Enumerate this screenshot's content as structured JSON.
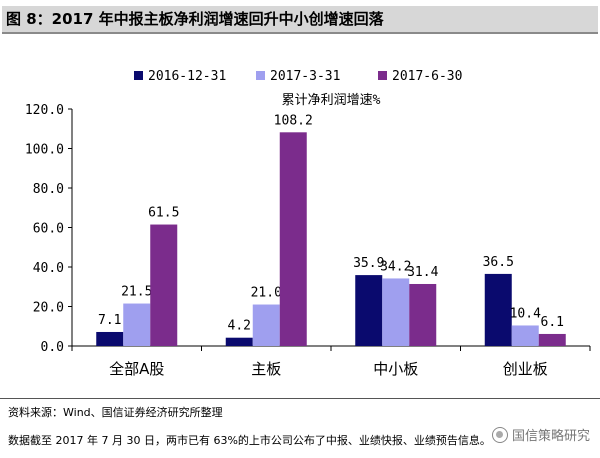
{
  "figure": {
    "title": "图 8：2017 年中报主板净利润增速回升中小创增速回落",
    "source": "资料来源：Wind、国信证券经济研究所整理",
    "note": "数据截至 2017 年 7 月 30 日，两市已有 63%的上市公司公布了中报、业绩快报、业绩预告信息。",
    "watermark": "国信策略研究"
  },
  "chart_data": {
    "type": "bar",
    "title": "累计净利润增速%",
    "categories": [
      "全部A股",
      "主板",
      "中小板",
      "创业板"
    ],
    "series": [
      {
        "name": "2016-12-31",
        "color": "#0a0a6e",
        "values": [
          7.1,
          4.2,
          35.9,
          36.5
        ]
      },
      {
        "name": "2017-3-31",
        "color": "#9f9fef",
        "values": [
          21.5,
          21.0,
          34.2,
          10.4
        ]
      },
      {
        "name": "2017-6-30",
        "color": "#7b2c8c",
        "values": [
          61.5,
          108.2,
          31.4,
          6.1
        ]
      }
    ],
    "data_labels": [
      [
        "7.1",
        "4.2",
        "35.9",
        "36.5"
      ],
      [
        "21.5",
        "21.0",
        "34.2",
        "10.4"
      ],
      [
        "61.5",
        "108.2",
        "31.4",
        "6.1"
      ]
    ],
    "ylim": [
      0,
      120
    ],
    "yticks": [
      "0.0",
      "20.0",
      "40.0",
      "60.0",
      "80.0",
      "100.0",
      "120.0"
    ],
    "xlabel": "",
    "ylabel": "",
    "legend": "top-center"
  }
}
